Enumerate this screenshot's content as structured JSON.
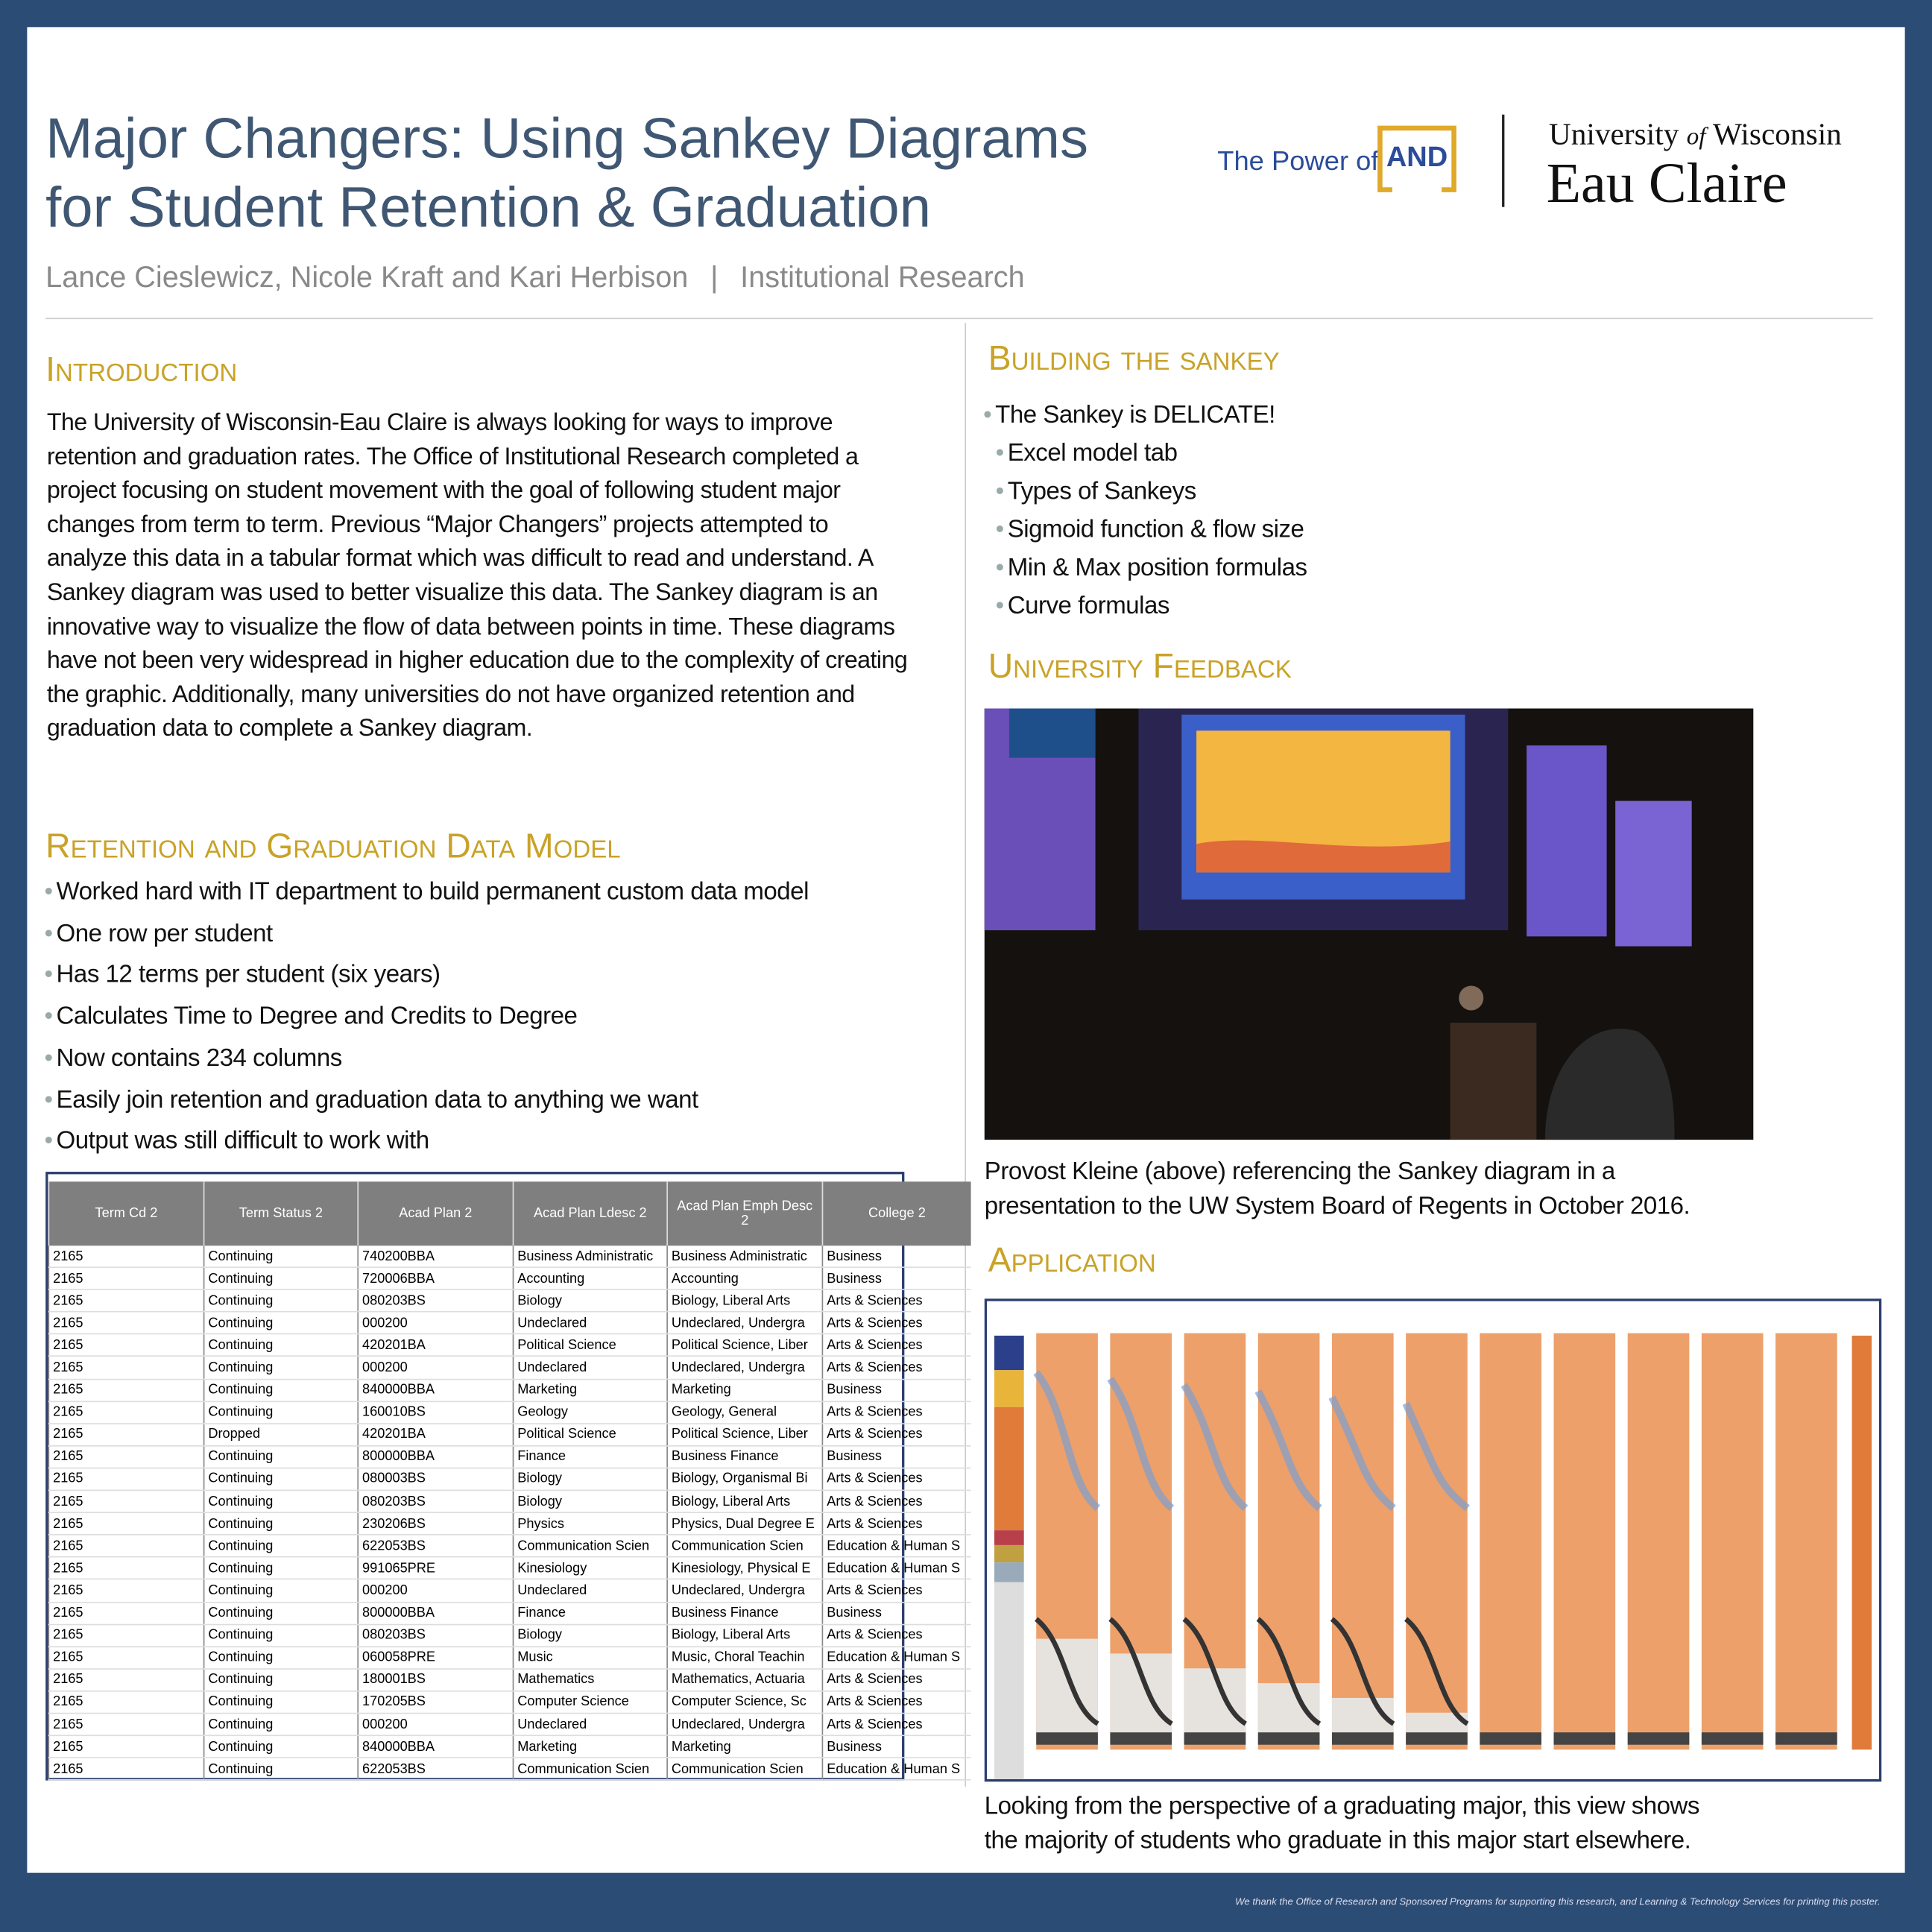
{
  "header": {
    "title_lines": [
      "Major Changers: Using Sankey Diagrams",
      "for Student Retention & Graduation"
    ],
    "authors": "Lance Cieslewicz, Nicole Kraft and Kari Herbison",
    "separator": "|",
    "department": "Institutional Research"
  },
  "logo": {
    "tagline": "The Power of",
    "emphasis": "AND",
    "university": [
      "University",
      "of",
      "Wisconsin"
    ],
    "campus": "Eau Claire"
  },
  "introduction": {
    "heading": "Introduction",
    "text": "The University of Wisconsin-Eau Claire is always looking for ways to improve retention and graduation rates. The Office of Institutional Research completed a project focusing on student movement with the goal of following student major changes from term to term. Previous “Major Changers” projects attempted to analyze this data in a tabular format which was difficult to read and understand. A Sankey diagram was used to better visualize this data. The Sankey diagram is an innovative way to visualize the flow of data between points in time.  These diagrams have not been very widespread in higher education due to the complexity of creating the graphic.  Additionally, many universities do not have organized retention and graduation data to complete a Sankey diagram."
  },
  "data_model": {
    "heading": "Retention and Graduation Data Model",
    "bullets": [
      "Worked hard with IT department to build permanent custom data model",
      "One row per student",
      "Has 12 terms per student (six years)",
      "Calculates Time to Degree and Credits to Degree",
      "Now contains 234 columns",
      "Easily join retention and graduation data to anything we want",
      "Output was still difficult to work with"
    ]
  },
  "table": {
    "columns": [
      "Term Cd 2",
      "Term Status 2",
      "Acad Plan 2",
      "Acad Plan Ldesc 2",
      "Acad Plan Emph Desc 2",
      "College 2"
    ],
    "rows": [
      [
        "2165",
        "Continuing",
        "740200BBA",
        "Business Administratic",
        "Business Administratic",
        "Business"
      ],
      [
        "2165",
        "Continuing",
        "720006BBA",
        "Accounting",
        "Accounting",
        "Business"
      ],
      [
        "2165",
        "Continuing",
        "080203BS",
        "Biology",
        "Biology, Liberal Arts",
        "Arts & Sciences"
      ],
      [
        "2165",
        "Continuing",
        "000200",
        "Undeclared",
        "Undeclared, Undergra",
        "Arts & Sciences"
      ],
      [
        "2165",
        "Continuing",
        "420201BA",
        "Political Science",
        "Political Science, Liber",
        "Arts & Sciences"
      ],
      [
        "2165",
        "Continuing",
        "000200",
        "Undeclared",
        "Undeclared, Undergra",
        "Arts & Sciences"
      ],
      [
        "2165",
        "Continuing",
        "840000BBA",
        "Marketing",
        "Marketing",
        "Business"
      ],
      [
        "2165",
        "Continuing",
        "160010BS",
        "Geology",
        "Geology, General",
        "Arts & Sciences"
      ],
      [
        "2165",
        "Dropped",
        "420201BA",
        "Political Science",
        "Political Science, Liber",
        "Arts & Sciences"
      ],
      [
        "2165",
        "Continuing",
        "800000BBA",
        "Finance",
        "Business Finance",
        "Business"
      ],
      [
        "2165",
        "Continuing",
        "080003BS",
        "Biology",
        "Biology, Organismal Bi",
        "Arts & Sciences"
      ],
      [
        "2165",
        "Continuing",
        "080203BS",
        "Biology",
        "Biology, Liberal Arts",
        "Arts & Sciences"
      ],
      [
        "2165",
        "Continuing",
        "230206BS",
        "Physics",
        "Physics, Dual Degree E",
        "Arts & Sciences"
      ],
      [
        "2165",
        "Continuing",
        "622053BS",
        "Communication Scien",
        "Communication Scien",
        "Education & Human S"
      ],
      [
        "2165",
        "Continuing",
        "991065PRE",
        "Kinesiology",
        "Kinesiology, Physical E",
        "Education & Human S"
      ],
      [
        "2165",
        "Continuing",
        "000200",
        "Undeclared",
        "Undeclared, Undergra",
        "Arts & Sciences"
      ],
      [
        "2165",
        "Continuing",
        "800000BBA",
        "Finance",
        "Business Finance",
        "Business"
      ],
      [
        "2165",
        "Continuing",
        "080203BS",
        "Biology",
        "Biology, Liberal Arts",
        "Arts & Sciences"
      ],
      [
        "2165",
        "Continuing",
        "060058PRE",
        "Music",
        "Music, Choral Teachin",
        "Education & Human S"
      ],
      [
        "2165",
        "Continuing",
        "180001BS",
        "Mathematics",
        "Mathematics, Actuaria",
        "Arts & Sciences"
      ],
      [
        "2165",
        "Continuing",
        "170205BS",
        "Computer Science",
        "Computer Science, Sc",
        "Arts & Sciences"
      ],
      [
        "2165",
        "Continuing",
        "000200",
        "Undeclared",
        "Undeclared, Undergra",
        "Arts & Sciences"
      ],
      [
        "2165",
        "Continuing",
        "840000BBA",
        "Marketing",
        "Marketing",
        "Business"
      ],
      [
        "2165",
        "Continuing",
        "622053BS",
        "Communication Scien",
        "Communication Scien",
        "Education & Human S"
      ]
    ]
  },
  "building": {
    "heading": "Building the sankey",
    "bullets": [
      "The Sankey is DELICATE!"
    ],
    "sub_bullets": [
      "Excel model tab",
      "Types of Sankeys",
      "Sigmoid function & flow size",
      "Min & Max position formulas",
      "Curve formulas"
    ]
  },
  "feedback": {
    "heading": "University Feedback",
    "caption_lines": [
      "Provost Kleine (above) referencing the Sankey diagram in a",
      "presentation to the UW System Board of Regents in October 2016."
    ]
  },
  "application": {
    "heading": "Application",
    "caption_lines": [
      "Looking from the perspective of a graduating major, this view shows",
      "the majority of students who graduate in this major start elsewhere."
    ]
  },
  "footer": {
    "text": "We thank the Office of Research and Sponsored Programs for supporting this research, and Learning & Technology Services for printing this poster."
  }
}
